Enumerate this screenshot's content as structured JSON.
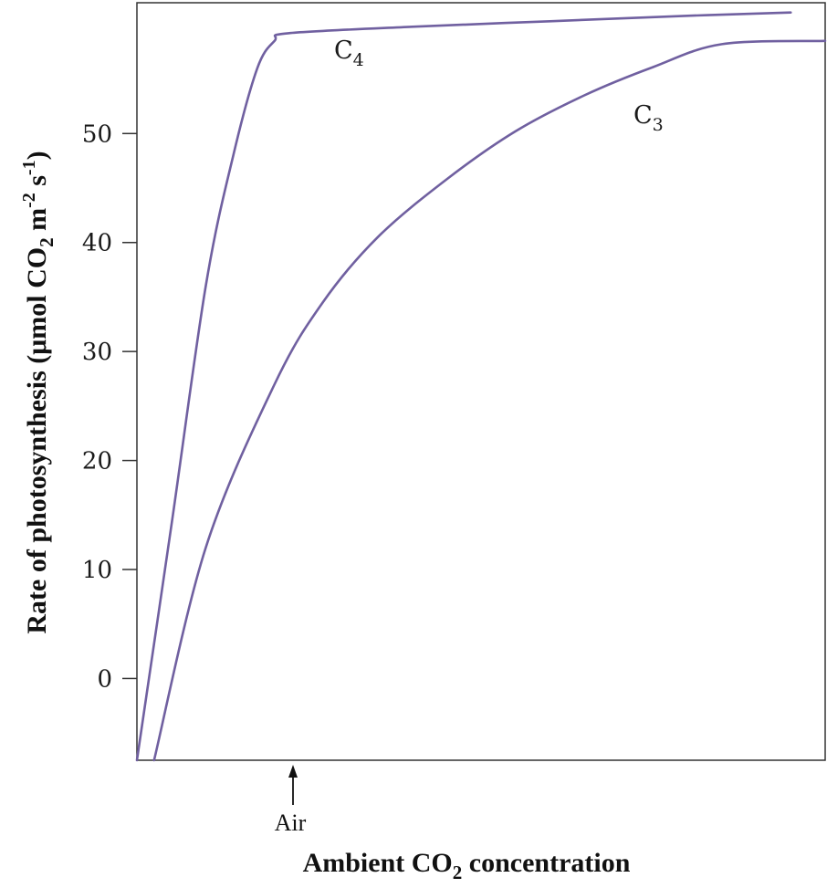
{
  "chart_data": {
    "type": "line",
    "xlabel": {
      "pre": "Ambient CO",
      "sub": "2",
      "post": " concentration"
    },
    "ylabel": {
      "a": "Rate of photosynthesis (μmol CO",
      "b": "2",
      "c": " m",
      "d": "-2",
      "e": " s",
      "f": "-1",
      "g": ")"
    },
    "ylim": [
      -7.5,
      62
    ],
    "xlim": [
      0,
      100
    ],
    "y_ticks": [
      0,
      10,
      20,
      30,
      40,
      50
    ],
    "y_tick_labels": [
      "0",
      "10",
      "20",
      "30",
      "40",
      "50"
    ],
    "annotation": {
      "label": "Air",
      "x": 23.8
    },
    "grid": false,
    "series": [
      {
        "name": "C4",
        "name_base": "C",
        "name_sub": "4",
        "color": "#7060a0",
        "points": [
          [
            0,
            -7.5
          ],
          [
            5,
            14
          ],
          [
            10,
            36
          ],
          [
            14,
            48
          ],
          [
            17.5,
            56
          ],
          [
            20,
            58.5
          ],
          [
            22,
            59.2
          ],
          [
            40,
            59.8
          ],
          [
            60,
            60.3
          ],
          [
            80,
            60.8
          ],
          [
            95,
            61.1
          ]
        ]
      },
      {
        "name": "C3",
        "name_base": "C",
        "name_sub": "3",
        "color": "#7060a0",
        "points": [
          [
            2.5,
            -7.5
          ],
          [
            10,
            12
          ],
          [
            20,
            27
          ],
          [
            27,
            34.5
          ],
          [
            35,
            40.5
          ],
          [
            45,
            45.8
          ],
          [
            55,
            50.2
          ],
          [
            65,
            53.5
          ],
          [
            75,
            56.1
          ],
          [
            85,
            58.2
          ],
          [
            100,
            58.5
          ]
        ]
      }
    ]
  }
}
